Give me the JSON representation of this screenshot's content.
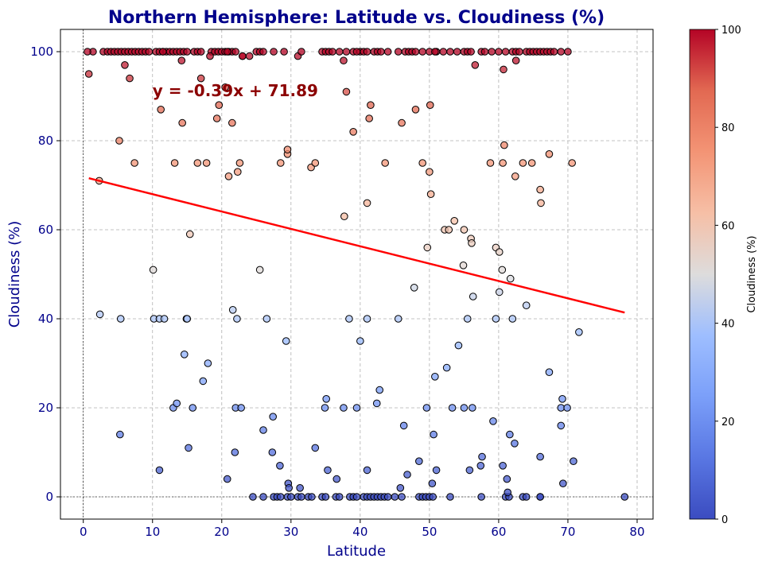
{
  "chart_data": {
    "type": "scatter",
    "title": "Northern Hemisphere: Latitude vs. Cloudiness (%)",
    "xlabel": "Latitude",
    "ylabel": "Cloudiness (%)",
    "xlim": [
      -3.3,
      82.3
    ],
    "ylim": [
      -5,
      105
    ],
    "xticks": [
      0,
      10,
      20,
      30,
      40,
      50,
      60,
      70,
      80
    ],
    "yticks": [
      0,
      20,
      40,
      60,
      80,
      100
    ],
    "grid": true,
    "colormap": "coolwarm",
    "colorbar": {
      "label": "Cloudiness (%)",
      "ticks": [
        0,
        20,
        40,
        60,
        80,
        100
      ],
      "range": [
        0,
        100
      ]
    },
    "regression": {
      "equation": "y = -0.39x + 71.89",
      "slope": -0.39,
      "intercept": 71.89,
      "x_range": [
        0.8,
        78.2
      ],
      "color": "#ff0000",
      "annotation_at": [
        10,
        90
      ]
    },
    "reference_lines": {
      "x": 0,
      "y": 0
    },
    "points_x": [
      0.8,
      1.4,
      2.9,
      3.5,
      4.0,
      4.5,
      5.0,
      5.5,
      6.0,
      6.5,
      7.0,
      7.5,
      8.0,
      8.5,
      9.0,
      9.5,
      10.5,
      11.0,
      11.5,
      12.0,
      12.5,
      13.0,
      13.5,
      14.0,
      14.5,
      15.0,
      16.0,
      16.5,
      17.0,
      18.5,
      19.0,
      19.5,
      20.0,
      20.5,
      21.0,
      21.5,
      22.0,
      24.0,
      25.0,
      25.5,
      26.0,
      27.5,
      29.0,
      31.0,
      31.5,
      34.5,
      35.0,
      35.5,
      36.0,
      37.0,
      38.0,
      39.0,
      40.0,
      40.5,
      41.0,
      42.0,
      42.5,
      43.0,
      44.0,
      45.5,
      46.5,
      47.0,
      47.5,
      48.0,
      49.0,
      50.0,
      51.0,
      52.0,
      53.0,
      54.0,
      55.0,
      55.5,
      56.0,
      57.5,
      58.0,
      59.0,
      60.0,
      61.0,
      62.0,
      62.5,
      63.0,
      64.0,
      64.5,
      65.0,
      65.5,
      66.0,
      66.5,
      67.0,
      67.5,
      68.0,
      69.0,
      70.0,
      0.6,
      6.0,
      11.5,
      14.2,
      18.3,
      20.8,
      23.0,
      37.6,
      39.5,
      50.8,
      56.6,
      60.7,
      62.5,
      5.2,
      6.7,
      7.4,
      11.2,
      13.2,
      14.3,
      16.5,
      17.0,
      17.8,
      19.3,
      19.6,
      20.5,
      21.0,
      21.5,
      22.3,
      22.6,
      28.5,
      29.5,
      29.5,
      32.9,
      33.5,
      38.0,
      39.0,
      41.3,
      41.5,
      43.6,
      46.0,
      48.0,
      49.0,
      50.0,
      50.1,
      55.0,
      58.8,
      60.6,
      60.8,
      62.4,
      63.5,
      64.8,
      66.0,
      67.3,
      70.6,
      2.3,
      15.4,
      23.0,
      25.5,
      37.7,
      41.0,
      47.8,
      49.7,
      50.2,
      52.2,
      52.8,
      53.6,
      54.9,
      56.0,
      56.1,
      59.6,
      60.1,
      66.1,
      2.4,
      5.4,
      10.1,
      10.2,
      11.0,
      11.7,
      14.9,
      21.6,
      22.2,
      26.5,
      29.3,
      38.4,
      40.0,
      41.0,
      45.5,
      55.5,
      56.3,
      59.6,
      60.1,
      61.7,
      62.0,
      64.0,
      71.6,
      5.3,
      11.0,
      13.0,
      13.5,
      14.6,
      15.0,
      15.2,
      15.8,
      17.3,
      18.0,
      20.8,
      21.9,
      22.0,
      22.8,
      26.0,
      27.4,
      27.3,
      28.4,
      29.6,
      33.5,
      34.9,
      35.1,
      35.3,
      36.6,
      37.6,
      39.5,
      41.0,
      42.4,
      42.8,
      46.3,
      46.8,
      48.5,
      49.6,
      50.6,
      50.8,
      51.0,
      52.5,
      53.3,
      54.2,
      55.0,
      55.8,
      56.2,
      57.4,
      57.6,
      59.2,
      60.5,
      60.6,
      61.2,
      61.6,
      62.3,
      66.0,
      67.3,
      69.0,
      69.0,
      69.2,
      69.3,
      69.9,
      70.8,
      24.5,
      26.0,
      27.5,
      28.0,
      28.5,
      29.5,
      30.0,
      31.0,
      31.5,
      32.5,
      33.0,
      34.5,
      35.0,
      36.5,
      37.0,
      38.5,
      39.0,
      39.5,
      40.5,
      41.0,
      41.5,
      42.0,
      42.5,
      43.0,
      43.5,
      44.0,
      45.0,
      46.0,
      48.5,
      49.0,
      49.5,
      50.0,
      50.5,
      53.0,
      57.5,
      61.0,
      61.5,
      63.5,
      64.0,
      66.0,
      78.2,
      29.7,
      31.3,
      45.8,
      50.4,
      61.3,
      66.0
    ],
    "points_y": [
      95,
      100,
      100,
      100,
      100,
      100,
      100,
      100,
      100,
      100,
      100,
      100,
      100,
      100,
      100,
      100,
      100,
      100,
      100,
      100,
      100,
      100,
      100,
      100,
      100,
      100,
      100,
      100,
      100,
      100,
      100,
      100,
      100,
      100,
      100,
      100,
      100,
      99,
      100,
      100,
      100,
      100,
      100,
      99,
      100,
      100,
      100,
      100,
      100,
      100,
      100,
      100,
      100,
      100,
      100,
      100,
      100,
      100,
      100,
      100,
      100,
      100,
      100,
      100,
      100,
      100,
      100,
      100,
      100,
      100,
      100,
      100,
      100,
      100,
      100,
      100,
      100,
      100,
      100,
      100,
      100,
      100,
      100,
      100,
      100,
      100,
      100,
      100,
      100,
      100,
      100,
      100,
      100,
      97,
      100,
      98,
      99,
      100,
      99,
      98,
      100,
      100,
      97,
      96,
      98,
      80,
      94,
      75,
      87,
      75,
      84,
      75,
      94,
      75,
      85,
      88,
      92,
      72,
      84,
      73,
      75,
      75,
      77,
      78,
      74,
      75,
      91,
      82,
      85,
      88,
      75,
      84,
      87,
      75,
      73,
      88,
      60,
      75,
      75,
      79,
      72,
      75,
      75,
      69,
      77,
      75,
      71,
      59,
      99,
      51,
      63,
      66,
      47,
      56,
      68,
      60,
      60,
      62,
      52,
      58,
      57,
      56,
      55,
      66,
      41,
      40,
      51,
      40,
      40,
      40,
      40,
      42,
      40,
      40,
      35,
      40,
      35,
      40,
      40,
      40,
      45,
      40,
      46,
      49,
      40,
      43,
      37,
      14,
      6,
      20,
      21,
      32,
      40,
      11,
      20,
      26,
      30,
      4,
      10,
      20,
      20,
      15,
      18,
      10,
      7,
      3,
      11,
      20,
      22,
      6,
      4,
      20,
      20,
      6,
      21,
      24,
      16,
      5,
      8,
      20,
      14,
      27,
      6,
      29,
      20,
      34,
      20,
      6,
      20,
      7,
      9,
      17,
      51,
      7,
      4,
      14,
      12,
      9,
      28,
      16,
      20,
      22,
      3,
      20,
      8,
      0,
      0,
      0,
      0,
      0,
      0,
      0,
      0,
      0,
      0,
      0,
      0,
      0,
      0,
      0,
      0,
      0,
      0,
      0,
      0,
      0,
      0,
      0,
      0,
      0,
      0,
      0,
      0,
      0,
      0,
      0,
      0,
      0,
      0,
      0,
      0,
      0,
      0,
      0,
      0,
      0,
      2,
      2,
      2,
      3,
      1,
      0
    ]
  }
}
